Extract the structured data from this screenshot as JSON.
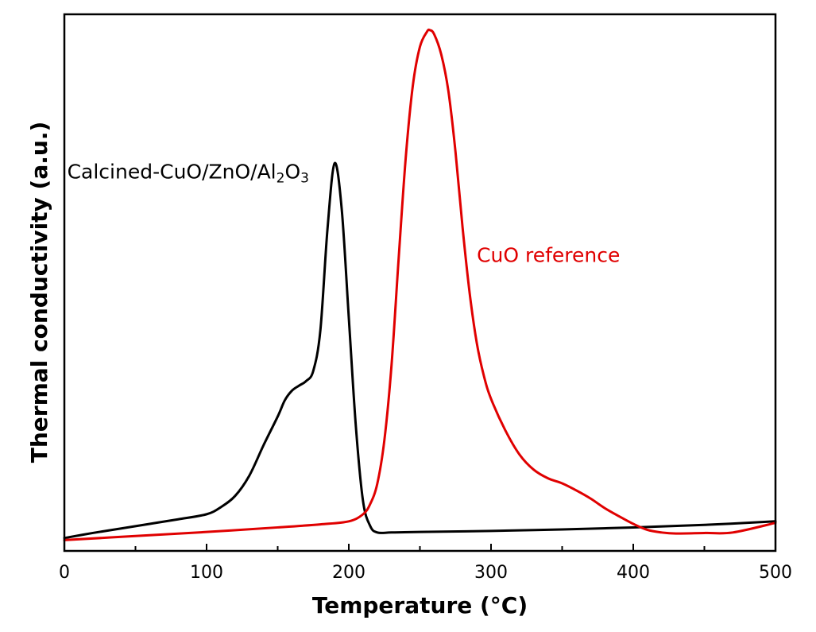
{
  "chart_data": {
    "type": "line",
    "title": "",
    "xlabel": "Temperature (°C)",
    "ylabel": "Thermal conductivity (a.u.)",
    "xlim": [
      0,
      500
    ],
    "ylim": [
      0,
      100
    ],
    "x_ticks": [
      0,
      100,
      200,
      300,
      400,
      500
    ],
    "x_tick_labels": [
      "0",
      "100",
      "200",
      "300",
      "400",
      "500"
    ],
    "x_minor_tick_step": 50,
    "y_tick_labels_shown": false,
    "grid": false,
    "legend": "none",
    "series": [
      {
        "name": "Calcined-CuO/ZnO/Al2O3",
        "color": "#000000",
        "x": [
          0,
          20,
          40,
          60,
          80,
          100,
          110,
          120,
          130,
          140,
          150,
          155,
          160,
          165,
          170,
          175,
          180,
          185,
          190,
          195,
          200,
          205,
          210,
          215,
          220,
          230,
          250,
          300,
          350,
          400,
          450,
          500
        ],
        "y": [
          0.5,
          1.5,
          2.4,
          3.3,
          4.2,
          5.2,
          6.6,
          8.8,
          12.8,
          18.8,
          24.5,
          27.7,
          29.6,
          30.6,
          31.5,
          33.5,
          41.5,
          61.5,
          74.5,
          65.5,
          44,
          22.4,
          7.8,
          2.9,
          1.6,
          1.6,
          1.7,
          1.9,
          2.2,
          2.6,
          3.1,
          3.8
        ]
      },
      {
        "name": "CuO reference",
        "color": "#e00000",
        "x": [
          0,
          50,
          100,
          150,
          180,
          200,
          210,
          215,
          220,
          225,
          230,
          235,
          240,
          245,
          250,
          255,
          257,
          260,
          265,
          270,
          275,
          280,
          285,
          290,
          295,
          300,
          310,
          320,
          330,
          340,
          350,
          360,
          370,
          380,
          390,
          400,
          410,
          420,
          430,
          450,
          470,
          500
        ],
        "y": [
          0.1,
          0.9,
          1.7,
          2.6,
          3.2,
          3.8,
          5.2,
          7.2,
          11.2,
          19.8,
          34.5,
          55.5,
          75.5,
          89.8,
          97.5,
          100.5,
          100.8,
          100,
          96,
          88.8,
          76.8,
          61.8,
          48.8,
          39,
          32.5,
          28,
          21.8,
          17,
          14,
          12.3,
          11.3,
          9.9,
          8.3,
          6.4,
          4.8,
          3.3,
          2.1,
          1.6,
          1.4,
          1.5,
          1.6,
          3.5
        ]
      }
    ],
    "annotations": [
      {
        "id": "black",
        "series_index": 0,
        "parts": [
          {
            "text": "Calcined-CuO/ZnO/Al",
            "sub": false
          },
          {
            "text": "2",
            "sub": true
          },
          {
            "text": "O",
            "sub": false
          },
          {
            "text": "3",
            "sub": true
          }
        ],
        "x_data": 2,
        "y_data": 71.5,
        "color": "#000000"
      },
      {
        "id": "red",
        "series_index": 1,
        "parts": [
          {
            "text": "CuO reference",
            "sub": false
          }
        ],
        "x_data": 290,
        "y_data": 55,
        "color": "#e00000"
      }
    ]
  }
}
